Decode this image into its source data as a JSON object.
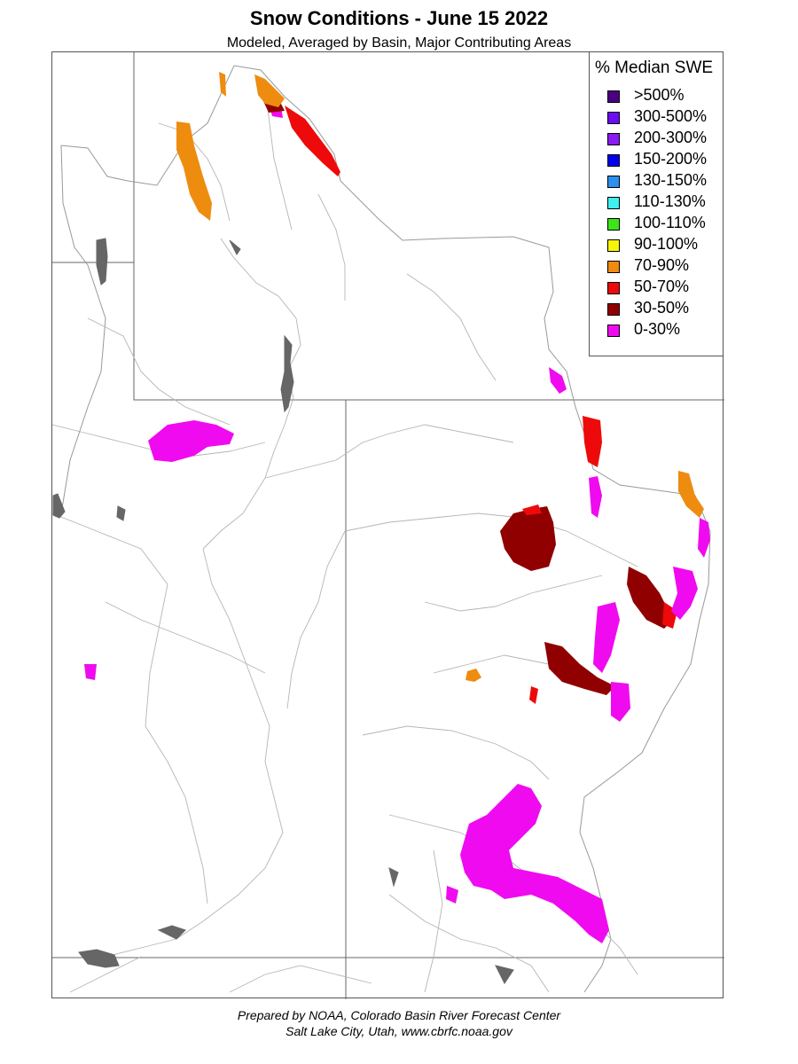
{
  "header": {
    "title": "Snow Conditions - June 15 2022",
    "subtitle": "Modeled, Averaged by Basin, Major Contributing Areas"
  },
  "legend": {
    "title": "% Median SWE",
    "items": [
      {
        "label": ">500%",
        "color": "#4b0082"
      },
      {
        "label": "300-500%",
        "color": "#6a0df0"
      },
      {
        "label": "200-300%",
        "color": "#8a1af2"
      },
      {
        "label": "150-200%",
        "color": "#0000ee"
      },
      {
        "label": "130-150%",
        "color": "#2d8fee"
      },
      {
        "label": "110-130%",
        "color": "#3ff0ee"
      },
      {
        "label": "100-110%",
        "color": "#3de41a"
      },
      {
        "label": "90-100%",
        "color": "#f4f40a"
      },
      {
        "label": "70-90%",
        "color": "#ee8c10"
      },
      {
        "label": "50-70%",
        "color": "#ee0a0a"
      },
      {
        "label": "30-50%",
        "color": "#900000"
      },
      {
        "label": "0-30%",
        "color": "#f00af0"
      }
    ]
  },
  "footer": {
    "line1": "Prepared by NOAA, Colorado Basin River Forecast Center",
    "line2": "Salt Lake City, Utah, www.cbrfc.noaa.gov"
  }
}
